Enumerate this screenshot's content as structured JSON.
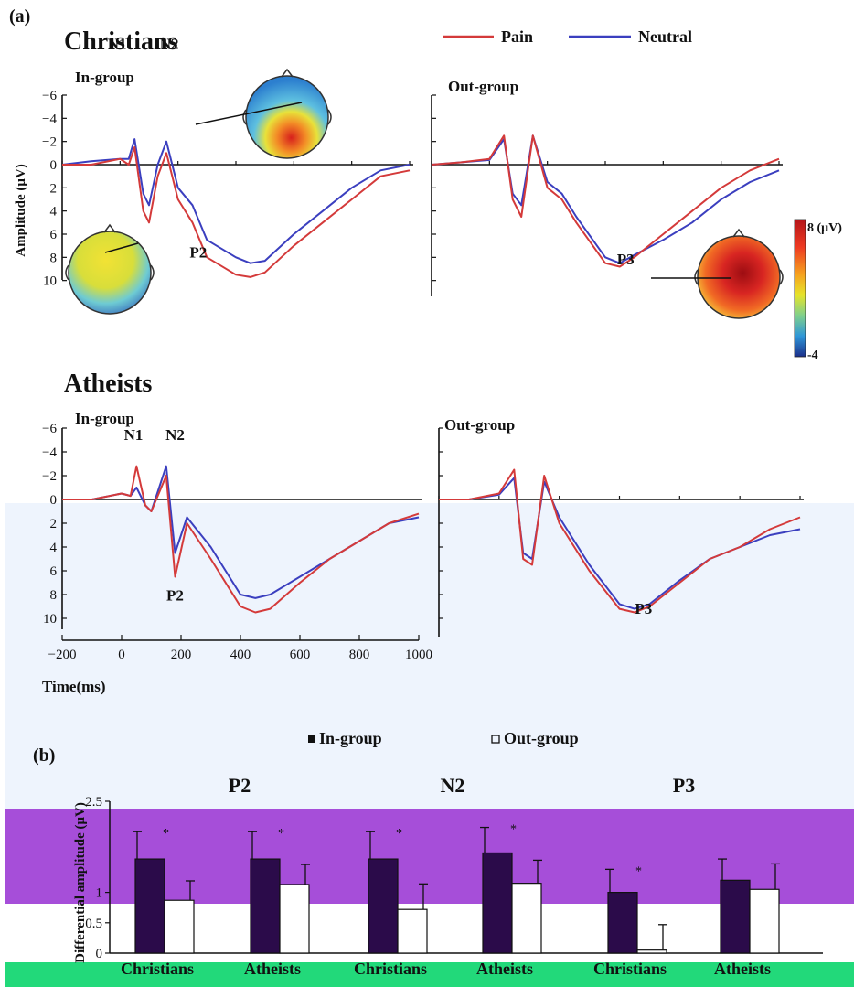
{
  "panel_a_label": "(a)",
  "panel_b_label": "(b)",
  "legend_a": {
    "pain": "Pain",
    "neutral": "Neutral"
  },
  "groups": {
    "christians": "Christians",
    "atheists": "Atheists"
  },
  "subtitles": {
    "in_group": "In-group",
    "out_group": "Out-group"
  },
  "y_axis_label_a": "Amplitude (μV)",
  "x_axis_label_a": "Time(ms)",
  "colorbar": {
    "max": "8 (μV)",
    "min": "-4"
  },
  "colors": {
    "pain": "#d43a3a",
    "neutral": "#3b3fbf"
  },
  "overlays": {
    "light_blue": "#eef4fd",
    "purple": "#a64ed9",
    "green": "#22d97a"
  },
  "chart_data": [
    {
      "type": "line",
      "title": "Christians In-group",
      "xlabel": "Time(ms)",
      "ylabel": "Amplitude (μV)",
      "ylim": [
        -6,
        10
      ],
      "y_inverted": true,
      "xlim": [
        -200,
        1000
      ],
      "yticks": [
        "-6",
        "-4",
        "-2",
        "0",
        "2",
        "4",
        "6",
        "8",
        "10"
      ],
      "annotations": [
        "N1",
        "N2",
        "P2"
      ],
      "series": [
        {
          "name": "Pain",
          "x": [
            -200,
            -100,
            0,
            30,
            50,
            80,
            100,
            130,
            160,
            200,
            250,
            300,
            400,
            450,
            500,
            600,
            700,
            800,
            900,
            1000
          ],
          "y": [
            0,
            0,
            -0.5,
            0,
            -1.5,
            4,
            5,
            1,
            -1,
            3,
            5,
            8,
            9.5,
            9.7,
            9.3,
            7,
            5,
            3,
            1,
            0.5
          ]
        },
        {
          "name": "Neutral",
          "x": [
            -200,
            -100,
            0,
            30,
            50,
            80,
            100,
            130,
            160,
            200,
            250,
            300,
            400,
            450,
            500,
            600,
            700,
            800,
            900,
            1000
          ],
          "y": [
            0,
            -0.3,
            -0.5,
            -0.5,
            -2.2,
            2.5,
            3.5,
            0,
            -2,
            2,
            3.5,
            6.5,
            8,
            8.5,
            8.3,
            6,
            4,
            2,
            0.5,
            0
          ]
        }
      ]
    },
    {
      "type": "line",
      "title": "Christians Out-group",
      "ylim": [
        -6,
        10
      ],
      "y_inverted": true,
      "xlim": [
        -200,
        1000
      ],
      "annotations": [
        "P3"
      ],
      "series": [
        {
          "name": "Pain",
          "x": [
            -200,
            -100,
            0,
            50,
            80,
            110,
            150,
            200,
            250,
            300,
            400,
            450,
            500,
            600,
            700,
            800,
            900,
            1000
          ],
          "y": [
            0,
            -0.2,
            -0.5,
            -2.5,
            3,
            4.5,
            -2.5,
            2,
            3,
            5,
            8.5,
            8.8,
            8,
            6,
            4,
            2,
            0.5,
            -0.5
          ]
        },
        {
          "name": "Neutral",
          "x": [
            -200,
            -100,
            0,
            50,
            80,
            110,
            150,
            200,
            250,
            300,
            400,
            450,
            500,
            600,
            700,
            800,
            900,
            1000
          ],
          "y": [
            0,
            -0.2,
            -0.4,
            -2.2,
            2.5,
            3.5,
            -2.5,
            1.5,
            2.5,
            4.5,
            8,
            8.5,
            7.8,
            6.5,
            5,
            3,
            1.5,
            0.5
          ]
        }
      ]
    },
    {
      "type": "line",
      "title": "Atheists In-group",
      "xlabel": "Time(ms)",
      "ylabel": "Amplitude (μV)",
      "ylim": [
        -6,
        10
      ],
      "y_inverted": true,
      "xlim": [
        -200,
        1000
      ],
      "xticks": [
        "-200",
        "0",
        "200",
        "400",
        "600",
        "800",
        "1000"
      ],
      "yticks": [
        "-6",
        "-4",
        "-2",
        "0",
        "2",
        "4",
        "6",
        "8",
        "10"
      ],
      "annotations": [
        "N1",
        "N2",
        "P2"
      ],
      "series": [
        {
          "name": "Pain",
          "x": [
            -200,
            -100,
            0,
            30,
            50,
            80,
            100,
            150,
            180,
            220,
            300,
            400,
            450,
            500,
            600,
            700,
            800,
            900,
            1000
          ],
          "y": [
            0,
            0,
            -0.5,
            -0.3,
            -2.8,
            0.5,
            1,
            -2,
            6.5,
            2,
            5,
            9,
            9.5,
            9.2,
            7,
            5,
            3.5,
            2,
            1.2
          ]
        },
        {
          "name": "Neutral",
          "x": [
            -200,
            -100,
            0,
            30,
            50,
            80,
            100,
            150,
            180,
            220,
            300,
            400,
            450,
            500,
            600,
            700,
            800,
            900,
            1000
          ],
          "y": [
            0,
            0,
            -0.5,
            -0.3,
            -1,
            0.5,
            1,
            -2.8,
            4.5,
            1.5,
            4,
            8,
            8.3,
            8,
            6.5,
            5,
            3.5,
            2,
            1.5
          ]
        }
      ]
    },
    {
      "type": "line",
      "title": "Atheists Out-group",
      "ylim": [
        -6,
        10
      ],
      "y_inverted": true,
      "xlim": [
        -200,
        1000
      ],
      "annotations": [
        "P3"
      ],
      "series": [
        {
          "name": "Pain",
          "x": [
            -200,
            -100,
            0,
            50,
            80,
            110,
            150,
            200,
            300,
            400,
            450,
            500,
            600,
            700,
            800,
            900,
            1000
          ],
          "y": [
            0,
            0,
            -0.5,
            -2.5,
            5,
            5.5,
            -2,
            2,
            6,
            9.2,
            9.5,
            9,
            7,
            5,
            4,
            2.5,
            1.5
          ]
        },
        {
          "name": "Neutral",
          "x": [
            -200,
            -100,
            0,
            50,
            80,
            110,
            150,
            200,
            300,
            400,
            450,
            500,
            600,
            700,
            800,
            900,
            1000
          ],
          "y": [
            0,
            0,
            -0.4,
            -1.8,
            4.5,
            5,
            -1.5,
            1.5,
            5.5,
            8.8,
            9.2,
            8.8,
            6.8,
            5,
            4,
            3,
            2.5
          ]
        }
      ]
    },
    {
      "type": "bar",
      "ylabel": "Differential amplitude (μV)",
      "ylim": [
        0,
        2.5
      ],
      "yticks": [
        "0",
        "0.5",
        "1",
        "1.5",
        "2",
        "2.5"
      ],
      "legend": [
        "In-group",
        "Out-group"
      ],
      "components": [
        "P2",
        "N2",
        "P3"
      ],
      "categories": [
        "Christians",
        "Atheists",
        "Christians",
        "Atheists",
        "Christians",
        "Atheists"
      ],
      "series": [
        {
          "name": "In-group",
          "values": [
            1.55,
            1.55,
            1.55,
            1.65,
            1.0,
            1.2
          ],
          "errors": [
            0.45,
            0.45,
            0.45,
            0.42,
            0.38,
            0.35
          ]
        },
        {
          "name": "Out-group",
          "values": [
            0.87,
            1.13,
            0.72,
            1.15,
            0.05,
            1.05
          ],
          "errors": [
            0.32,
            0.33,
            0.42,
            0.38,
            0.42,
            0.42
          ]
        }
      ],
      "significance": [
        "*",
        "*",
        "*",
        "*",
        "*",
        ""
      ]
    }
  ]
}
